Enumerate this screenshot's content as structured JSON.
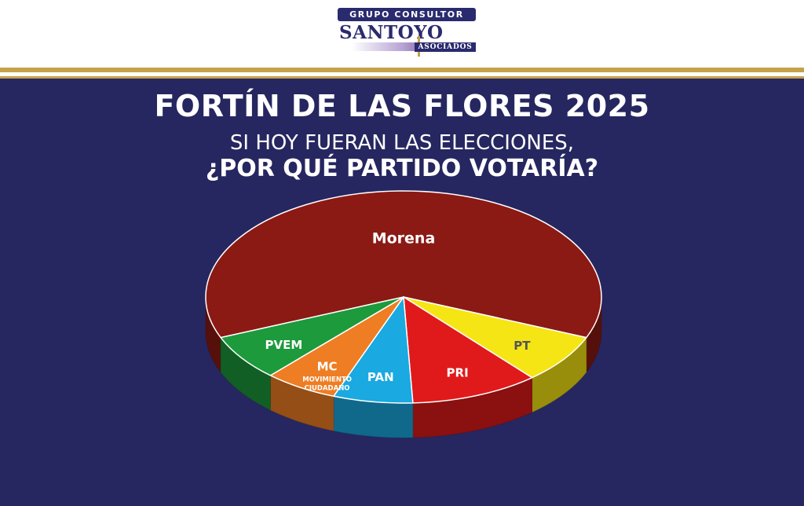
{
  "logo": {
    "top_text": "GRUPO CONSULTOR",
    "main_text": "SANTOYO",
    "sub_text": "ASOCIADOS"
  },
  "header": {
    "title": "FORTÍN DE LAS FLORES 2025",
    "subtitle_line1": "SI HOY FUERAN LAS ELECCIONES,",
    "subtitle_line2": "¿POR QUÉ PARTIDO VOTARÍA?"
  },
  "colors": {
    "background": "#262660",
    "accent_gold": "#c4a24a"
  },
  "chart_data": {
    "type": "pie",
    "title": "",
    "slices": [
      {
        "label": "Morena",
        "value": 62.5,
        "color": "#8b1a14",
        "label_color": "#ffffff"
      },
      {
        "label": "PT",
        "value": 7.5,
        "color": "#f5e514",
        "label_color": "#555555"
      },
      {
        "label": "PRI",
        "value": 10.5,
        "color": "#e01a1a",
        "label_color": "#ffffff"
      },
      {
        "label": "PAN",
        "value": 6.5,
        "color": "#1aa9e0",
        "label_color": "#ffffff"
      },
      {
        "label": "MC",
        "sublabel": "MOVIMIENTO CIUDADANO",
        "value": 6.0,
        "color": "#ee7d23",
        "label_color": "#ffffff"
      },
      {
        "label": "PVEM",
        "value": 7.0,
        "color": "#1d9a3c",
        "label_color": "#ffffff"
      }
    ]
  }
}
